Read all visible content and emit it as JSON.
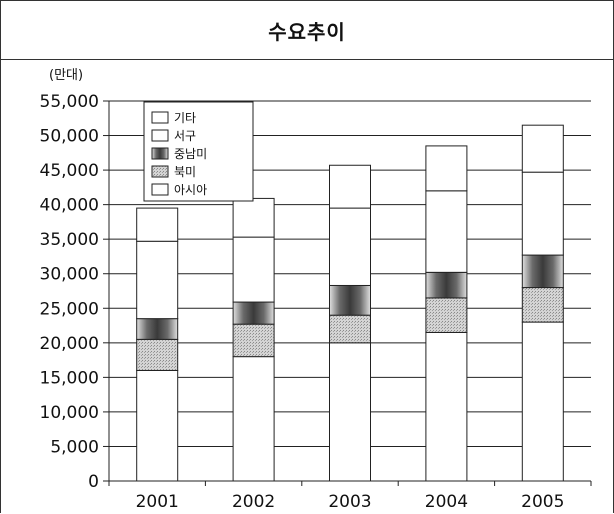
{
  "chart_data": {
    "type": "bar",
    "stacked": true,
    "title": "수요추이",
    "unit_label": "(만대)",
    "categories": [
      "2001",
      "2002",
      "2003",
      "2004",
      "2005"
    ],
    "ylim": [
      0,
      55000
    ],
    "yticks": [
      0,
      5000,
      10000,
      15000,
      20000,
      25000,
      30000,
      35000,
      40000,
      45000,
      50000,
      55000
    ],
    "ytick_labels": [
      "0",
      "5,000",
      "10,000",
      "15,000",
      "20,000",
      "25,000",
      "30,000",
      "35,000",
      "40,000",
      "45,000",
      "50,000",
      "55,000"
    ],
    "grid": true,
    "legend_position": "top-left",
    "legend": [
      "기타",
      "서구",
      "중남미",
      "북미",
      "아시아"
    ],
    "series": [
      {
        "name": "아시아",
        "values": [
          16000,
          18000,
          20000,
          21500,
          23000
        ],
        "color": "#ffffff"
      },
      {
        "name": "북미",
        "values": [
          4500,
          4700,
          4000,
          5000,
          5000
        ],
        "color": "#c8c8c8"
      },
      {
        "name": "중남미",
        "values": [
          3000,
          3200,
          4300,
          3700,
          4700
        ],
        "color": "#7a7a7a"
      },
      {
        "name": "서구",
        "values": [
          11200,
          9400,
          11200,
          11800,
          12000
        ],
        "color": "#ffffff"
      },
      {
        "name": "기타",
        "values": [
          4800,
          5600,
          6200,
          6500,
          6800
        ],
        "color": "#ffffff"
      }
    ]
  }
}
